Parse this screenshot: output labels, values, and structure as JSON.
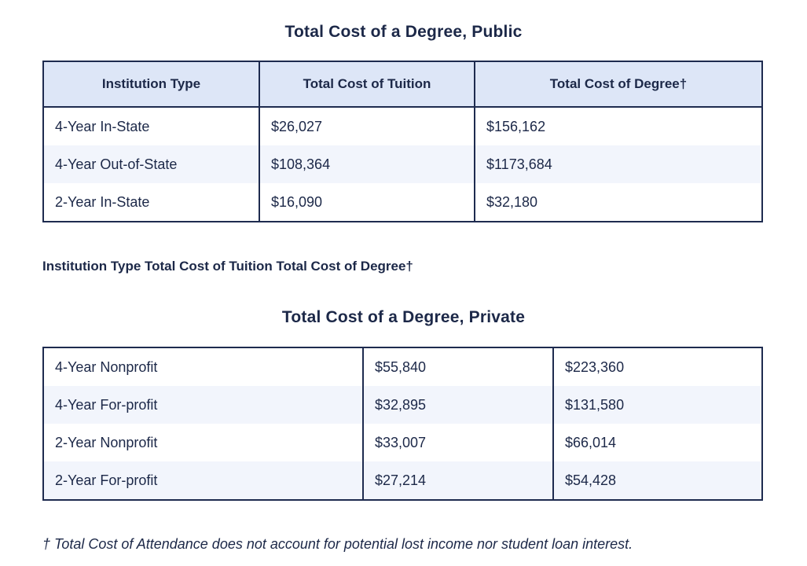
{
  "public": {
    "title": "Total Cost of a Degree, Public",
    "headers": [
      "Institution Type",
      "Total Cost of Tuition",
      "Total Cost of Degree†"
    ],
    "rows": [
      [
        "4-Year In-State",
        "$26,027",
        "$156,162"
      ],
      [
        "4-Year Out-of-State",
        "$108,364",
        "$1173,684"
      ],
      [
        "2-Year In-State",
        "$16,090",
        "$32,180"
      ]
    ]
  },
  "loose_header": "Institution Type Total Cost of Tuition Total Cost of Degree†",
  "private": {
    "title": "Total Cost of a Degree, Private",
    "rows": [
      [
        "4-Year Nonprofit",
        "$55,840",
        "$223,360"
      ],
      [
        "4-Year For-profit",
        "$32,895",
        "$131,580"
      ],
      [
        "2-Year Nonprofit",
        "$33,007",
        "$66,014"
      ],
      [
        "2-Year For-profit",
        "$27,214",
        "$54,428"
      ]
    ]
  },
  "footnote": "† Total Cost of Attendance does not account for potential lost income nor student loan interest.",
  "colors": {
    "text": "#1c2848",
    "border": "#1e2b4f",
    "header_bg": "#dde6f7",
    "alt_row_bg": "#f2f5fc"
  }
}
